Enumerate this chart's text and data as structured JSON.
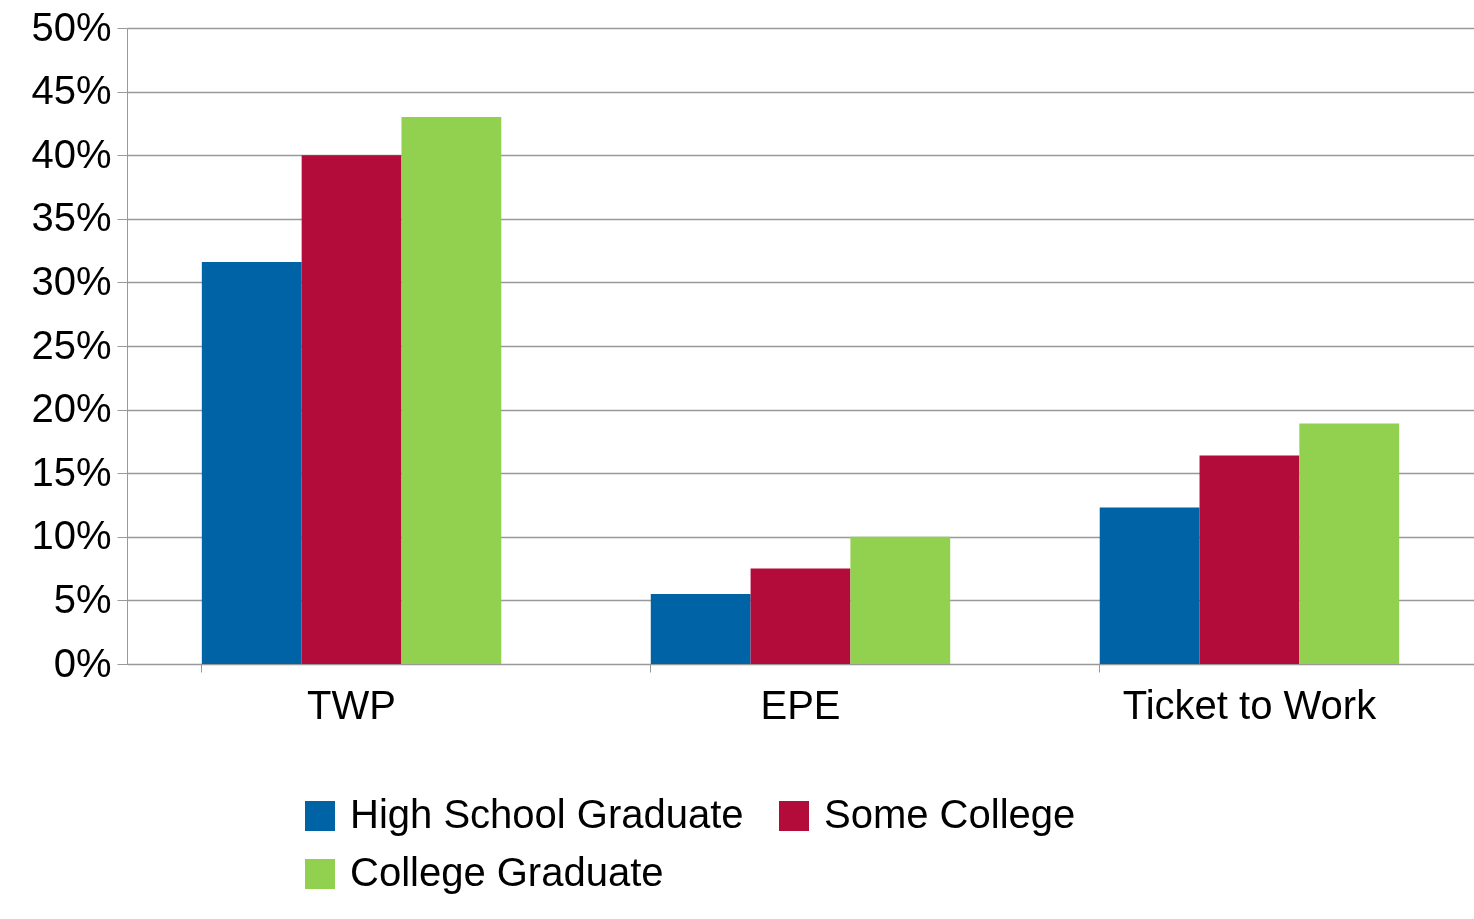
{
  "chart_data": {
    "type": "bar",
    "categories": [
      "TWP",
      "EPE",
      "Ticket to Work"
    ],
    "series": [
      {
        "name": "High School Graduate",
        "color": "#0063a5",
        "values": [
          31.6,
          5.5,
          12.3
        ]
      },
      {
        "name": "Some College",
        "color": "#b30c3a",
        "values": [
          40.0,
          7.5,
          16.4
        ]
      },
      {
        "name": "College Graduate",
        "color": "#92d050",
        "values": [
          43.0,
          10.0,
          18.9
        ]
      }
    ],
    "ylim": [
      0,
      50
    ],
    "yticks": [
      {
        "value": 0,
        "label": "0%"
      },
      {
        "value": 5,
        "label": "5%"
      },
      {
        "value": 10,
        "label": "10%"
      },
      {
        "value": 15,
        "label": "15%"
      },
      {
        "value": 20,
        "label": "20%"
      },
      {
        "value": 25,
        "label": "25%"
      },
      {
        "value": 30,
        "label": "30%"
      },
      {
        "value": 35,
        "label": "35%"
      },
      {
        "value": 40,
        "label": "40%"
      },
      {
        "value": 45,
        "label": "45%"
      },
      {
        "value": 50,
        "label": "50%"
      }
    ],
    "grid": "y",
    "legend": "bottom"
  }
}
